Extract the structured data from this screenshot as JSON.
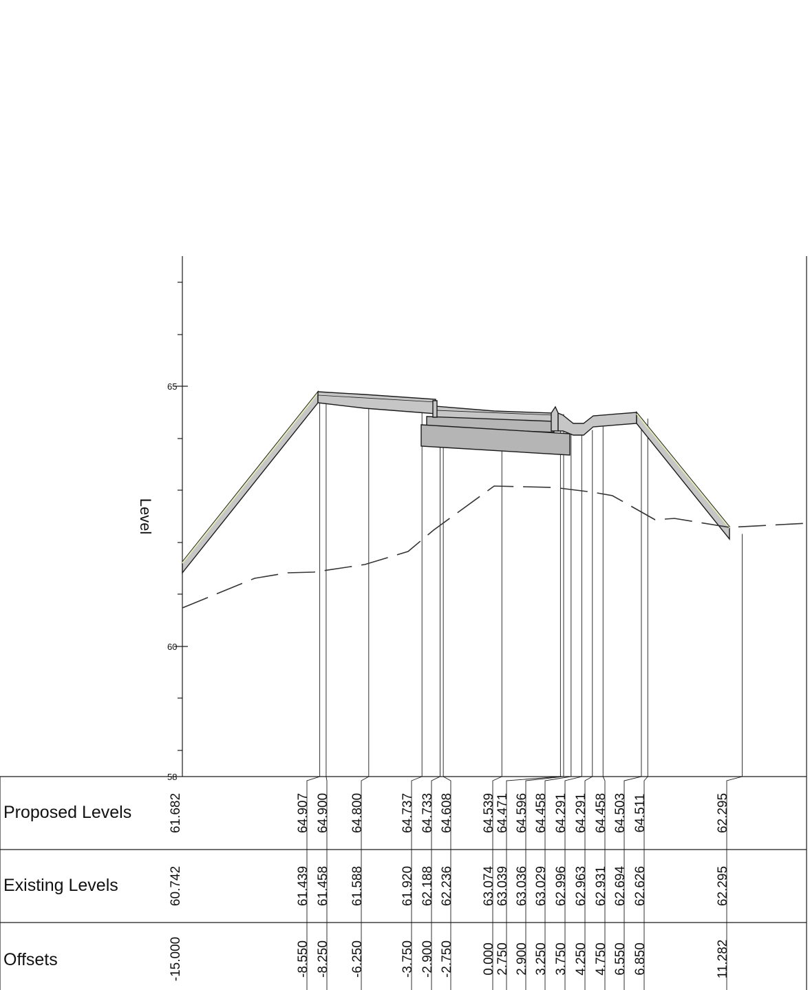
{
  "axis": {
    "y_label": "Level",
    "y_ticks": [
      "65",
      "60",
      "58"
    ]
  },
  "bands": {
    "proposed_title": "Proposed Levels",
    "existing_title": "Existing Levels",
    "offsets_title": "Offsets"
  },
  "colors": {
    "pavement_fill": "#c6c6c6",
    "pavement_edge": "#e4e8b8",
    "structure_fill": "#b5b5b5",
    "line": "#1a1a1a"
  },
  "chart_data": {
    "type": "cross-section",
    "ylim": [
      58,
      67
    ],
    "xlim": [
      -15.0,
      16.0
    ],
    "proposed_levels": [
      {
        "offset": "-15.000",
        "level": "61.682"
      },
      {
        "offset": "-8.550",
        "level": "64.907"
      },
      {
        "offset": "-8.250",
        "level": "64.900"
      },
      {
        "offset": "-6.250",
        "level": "64.800"
      },
      {
        "offset": "-3.750",
        "level": "64.737"
      },
      {
        "offset": "-2.900",
        "level": "64.733"
      },
      {
        "offset": "-2.750",
        "level": "64.608"
      },
      {
        "offset": "0.000",
        "level": "64.539"
      },
      {
        "offset": "2.750",
        "level": "64.471"
      },
      {
        "offset": "2.900",
        "level": "64.596"
      },
      {
        "offset": "3.250",
        "level": "64.458"
      },
      {
        "offset": "3.750",
        "level": "64.291"
      },
      {
        "offset": "4.250",
        "level": "64.291"
      },
      {
        "offset": "4.750",
        "level": "64.458"
      },
      {
        "offset": "6.550",
        "level": "64.503"
      },
      {
        "offset": "6.850",
        "level": "64.511"
      },
      {
        "offset": "11.282",
        "level": "62.295"
      }
    ],
    "existing_levels": [
      {
        "offset": "-15.000",
        "level": "60.742"
      },
      {
        "offset": "-8.550",
        "level": "61.439"
      },
      {
        "offset": "-8.250",
        "level": "61.458"
      },
      {
        "offset": "-6.250",
        "level": "61.588"
      },
      {
        "offset": "-3.750",
        "level": "61.920"
      },
      {
        "offset": "-2.900",
        "level": "62.188"
      },
      {
        "offset": "-2.750",
        "level": "62.236"
      },
      {
        "offset": "0.000",
        "level": "63.074"
      },
      {
        "offset": "2.750",
        "level": "63.039"
      },
      {
        "offset": "2.900",
        "level": "63.036"
      },
      {
        "offset": "3.250",
        "level": "63.029"
      },
      {
        "offset": "3.750",
        "level": "62.996"
      },
      {
        "offset": "4.250",
        "level": "62.963"
      },
      {
        "offset": "4.750",
        "level": "62.931"
      },
      {
        "offset": "6.550",
        "level": "62.694"
      },
      {
        "offset": "6.850",
        "level": "62.626"
      },
      {
        "offset": "11.282",
        "level": "62.295"
      }
    ]
  }
}
